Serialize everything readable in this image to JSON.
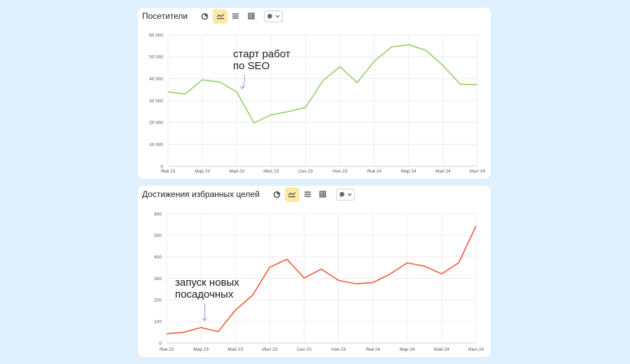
{
  "colors": {
    "background": "#dff0ff",
    "visitors_line": "#8ccb5e",
    "goals_line": "#f24d2e",
    "annotation_arrow": "#9a8de0",
    "toolbar_active": "#fde9a6"
  },
  "toolbar_icons": [
    "pie-chart-icon",
    "line-chart-icon",
    "stacked-area-icon",
    "table-grid-icon",
    "comment-dropdown-icon"
  ],
  "chart_data": [
    {
      "type": "line",
      "title": "Посетители",
      "x": [
        "Янв 23",
        "Фев 23",
        "Мар 23",
        "Апр 23",
        "Май 23",
        "Июн 23",
        "Июл 23",
        "Авг 23",
        "Сен 23",
        "Окт 23",
        "Ноя 23",
        "Дек 23",
        "Янв 24",
        "Фев 24",
        "Мар 24",
        "Апр 24",
        "Май 24",
        "Июн 24",
        "Июл 24"
      ],
      "x_tick_labels": [
        "Янв 23",
        "Мар 23",
        "Май 23",
        "Июл 23",
        "Сен 23",
        "Ноя 23",
        "Янв 24",
        "Мар 24",
        "Май 24",
        "Июл 24"
      ],
      "series": [
        {
          "values": [
            34000,
            33000,
            39500,
            38500,
            34000,
            19800,
            23500,
            25000,
            26800,
            39000,
            45500,
            38200,
            48000,
            54500,
            55500,
            53000,
            46000,
            37500,
            37300
          ]
        }
      ],
      "ylim": [
        0,
        60000
      ],
      "y_ticks": [
        "0",
        "10 000",
        "20 000",
        "30 000",
        "40 000",
        "50 000",
        "60 000"
      ],
      "annotation": {
        "line1": "старт работ",
        "line2": "по SEO",
        "x": "Май 23"
      },
      "grid": true
    },
    {
      "type": "line",
      "title": "Достижения избранных целей",
      "x": [
        "Янв 23",
        "Фев 23",
        "Мар 23",
        "Апр 23",
        "Май 23",
        "Июн 23",
        "Июл 23",
        "Авг 23",
        "Сен 23",
        "Окт 23",
        "Ноя 23",
        "Дек 23",
        "Янв 24",
        "Фев 24",
        "Мар 24",
        "Апр 24",
        "Май 24",
        "Июн 24",
        "Июл 24"
      ],
      "x_tick_labels": [
        "Янв 23",
        "Мар 23",
        "Май 23",
        "Июл 23",
        "Сен 23",
        "Ноя 23",
        "Янв 24",
        "Мар 24",
        "Май 24",
        "Июл 24"
      ],
      "series": [
        {
          "values": [
            43,
            50,
            72,
            53,
            152,
            222,
            352,
            389,
            302,
            343,
            291,
            275,
            281,
            320,
            372,
            357,
            321,
            373,
            543
          ]
        }
      ],
      "ylim": [
        0,
        600
      ],
      "y_ticks": [
        "0",
        "100",
        "200",
        "300",
        "400",
        "500",
        "600"
      ],
      "annotation": {
        "line1": "запуск новых",
        "line2": "посадочных",
        "x": "Мар 23"
      },
      "grid": true
    }
  ]
}
